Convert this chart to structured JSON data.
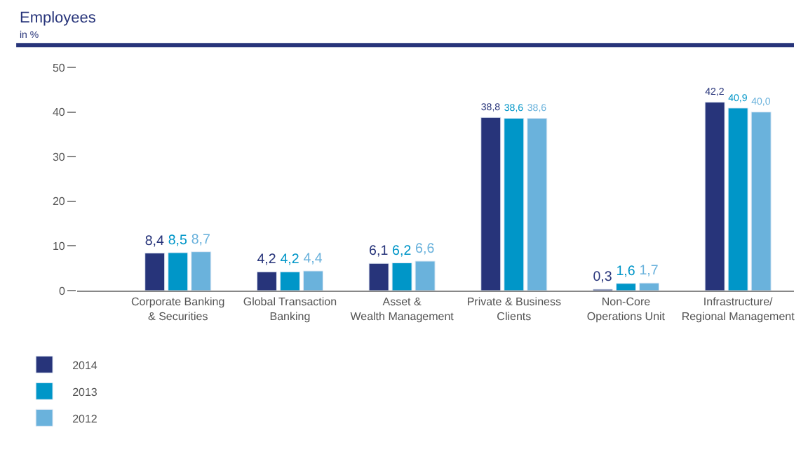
{
  "chart_data": {
    "type": "bar",
    "title": "Employees",
    "subtitle": "in %",
    "categories": [
      "Corporate Banking\n& Securities",
      "Global Transaction\nBanking",
      "Asset &\nWealth Management",
      "Private & Business\nClients",
      "Non-Core\nOperations Unit",
      "Infrastructure/\nRegional Management"
    ],
    "series": [
      {
        "name": "2014",
        "color": "#27347a",
        "values": [
          8.4,
          4.2,
          6.1,
          38.8,
          0.3,
          42.2
        ],
        "value_labels": [
          "8,4",
          "4,2",
          "6,1",
          "38,8",
          "0,3",
          "42,2"
        ]
      },
      {
        "name": "2013",
        "color": "#0096c8",
        "values": [
          8.5,
          4.2,
          6.2,
          38.6,
          1.6,
          40.9
        ],
        "value_labels": [
          "8,5",
          "4,2",
          "6,2",
          "38,6",
          "1,6",
          "40,9"
        ]
      },
      {
        "name": "2012",
        "color": "#6ab2dc",
        "values": [
          8.7,
          4.4,
          6.6,
          38.6,
          1.7,
          40.0
        ],
        "value_labels": [
          "8,7",
          "4,4",
          "6,6",
          "38,6",
          "1,7",
          "40,0"
        ]
      }
    ],
    "ylim": [
      0,
      50
    ],
    "yticks": [
      0,
      10,
      20,
      30,
      40,
      50
    ],
    "legend": "bottom left"
  }
}
